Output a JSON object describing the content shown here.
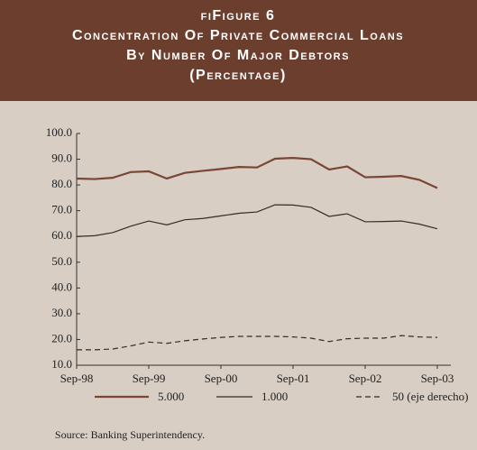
{
  "chart_data": {
    "type": "line",
    "title_lines": [
      "fiFigure 6",
      "Concentration Of Private Commercial Loans",
      "By Number Of Major Debtors",
      "(Percentage)"
    ],
    "categories": [
      "Sep-98",
      null,
      null,
      null,
      "Sep-99",
      null,
      null,
      null,
      "Sep-00",
      null,
      null,
      null,
      "Sep-01",
      null,
      null,
      null,
      "Sep-02",
      null,
      null,
      null,
      "Sep-03"
    ],
    "series": [
      {
        "name": "5.000",
        "color": "#7a4535",
        "width": 2.2,
        "dashed": false,
        "values": [
          82.5,
          82.3,
          82.8,
          85,
          85.3,
          82.5,
          84.7,
          85.5,
          86.2,
          87,
          86.8,
          90.2,
          90.5,
          90,
          86,
          87.2,
          83,
          83.2,
          83.5,
          82,
          78.8
        ]
      },
      {
        "name": "1.000",
        "color": "#3a2a22",
        "width": 1.2,
        "dashed": false,
        "values": [
          60,
          60.3,
          61.5,
          64,
          66,
          64.5,
          66.5,
          67,
          68,
          69,
          69.5,
          72.3,
          72.2,
          71.3,
          67.8,
          68.8,
          65.7,
          65.8,
          66,
          64.8,
          63
        ]
      },
      {
        "name": "50 (eje derecho)",
        "color": "#3a2a22",
        "width": 1.2,
        "dashed": true,
        "values": [
          16,
          16,
          16.3,
          17.5,
          19,
          18.5,
          19.5,
          20.2,
          20.8,
          21.2,
          21.2,
          21.2,
          21,
          20.5,
          19.2,
          20.3,
          20.5,
          20.5,
          21.5,
          21,
          20.8
        ]
      }
    ],
    "ylim": [
      10,
      100
    ],
    "yticks": [
      {
        "value": 10,
        "label": "10.0"
      },
      {
        "value": 20,
        "label": "20.0"
      },
      {
        "value": 30,
        "label": "30.0"
      },
      {
        "value": 40,
        "label": "40.0"
      },
      {
        "value": 50,
        "label": "50.0"
      },
      {
        "value": 60,
        "label": "60.0"
      },
      {
        "value": 70,
        "label": "70.0"
      },
      {
        "value": 80,
        "label": "80.0"
      },
      {
        "value": 90,
        "label": "90.0"
      },
      {
        "value": 100,
        "label": "100.0"
      }
    ],
    "source": "Source: Banking Superintendency."
  }
}
